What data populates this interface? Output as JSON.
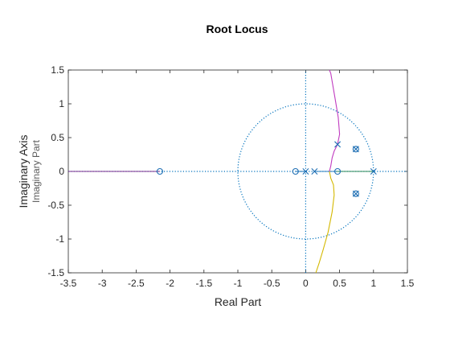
{
  "chart_data": {
    "type": "line",
    "title": "Root Locus",
    "xlabel": "Real Part",
    "ylabel": "Imaginary Axis",
    "ysublabel": "Imaginary Part",
    "xlim": [
      -3.5,
      1.5
    ],
    "ylim": [
      -1.5,
      1.5
    ],
    "xticks": [
      "-3.5",
      "-3",
      "-2.5",
      "-2",
      "-1.5",
      "-1",
      "-0.5",
      "0",
      "0.5",
      "1",
      "1.5"
    ],
    "yticks": [
      "1.5",
      "1",
      "0.5",
      "0",
      "-0.5",
      "-1",
      "-1.5"
    ],
    "grid": false,
    "unit_circle": true,
    "colors": {
      "axes": "#262626",
      "reference": "#0072BD",
      "branch_purple": "#7E2F8E",
      "branch_magenta": "#C03BC0",
      "branch_yellow": "#D4B800",
      "branch_green": "#2E8B57",
      "branch_blue": "#2a7fc0",
      "marker": "#1f6fb4"
    },
    "series": [
      {
        "color": "purple",
        "points": [
          [
            -3.5,
            0
          ],
          [
            -2.15,
            0
          ]
        ]
      },
      {
        "color": "green",
        "points": [
          [
            0.45,
            0
          ],
          [
            1.0,
            0
          ]
        ]
      },
      {
        "color": "blue",
        "points": [
          [
            0.12,
            0
          ],
          [
            0.45,
            0
          ]
        ]
      },
      {
        "color": "blue",
        "points": [
          [
            -0.15,
            0
          ],
          [
            0.0,
            0
          ]
        ]
      },
      {
        "color": "magenta",
        "points": [
          [
            0.47,
            0.4
          ],
          [
            0.5,
            0.55
          ],
          [
            0.48,
            0.8
          ],
          [
            0.43,
            1.1
          ],
          [
            0.37,
            1.45
          ],
          [
            0.35,
            1.5
          ]
        ]
      },
      {
        "color": "magenta",
        "points": [
          [
            0.47,
            0.4
          ],
          [
            0.42,
            0.3
          ],
          [
            0.39,
            0.2
          ],
          [
            0.37,
            0.08
          ],
          [
            0.35,
            0
          ]
        ]
      },
      {
        "color": "yellow",
        "points": [
          [
            0.35,
            0
          ],
          [
            0.37,
            -0.1
          ],
          [
            0.41,
            -0.2
          ],
          [
            0.42,
            -0.35
          ],
          [
            0.39,
            -0.6
          ],
          [
            0.33,
            -0.9
          ],
          [
            0.26,
            -1.15
          ],
          [
            0.2,
            -1.35
          ],
          [
            0.15,
            -1.5
          ]
        ]
      }
    ],
    "poles": [
      [
        0.0,
        0.0
      ],
      [
        0.13,
        0.0
      ],
      [
        0.47,
        0.4
      ],
      [
        1.0,
        0.0
      ],
      [
        0.74,
        0.33
      ],
      [
        0.74,
        -0.33
      ]
    ],
    "zeros": [
      [
        -2.15,
        0.0
      ],
      [
        -0.15,
        0.0
      ],
      [
        0.47,
        0.0
      ],
      [
        0.74,
        0.33
      ],
      [
        0.74,
        -0.33
      ]
    ]
  }
}
